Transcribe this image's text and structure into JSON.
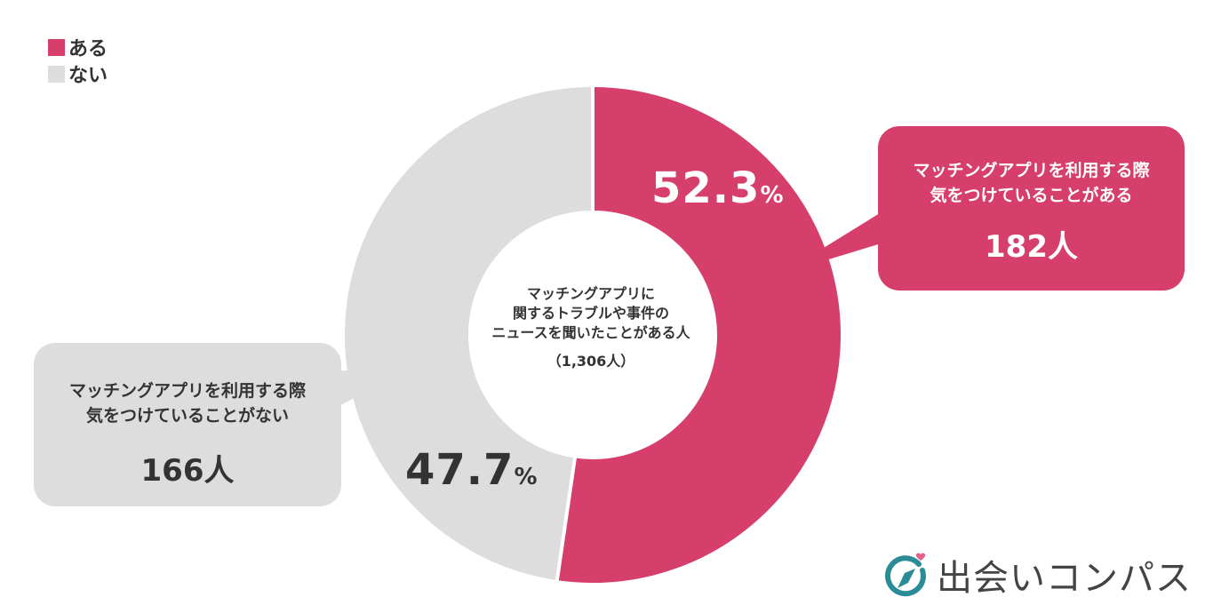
{
  "colors": {
    "yes": "#d63e6c",
    "no": "#dddddd",
    "text": "#333333"
  },
  "legend": [
    {
      "label": "ある",
      "color": "#d63e6c"
    },
    {
      "label": "ない",
      "color": "#dddddd"
    }
  ],
  "chart_data": {
    "type": "pie",
    "subtype": "donut",
    "center_label": [
      "マッチングアプリに",
      "関するトラブルや事件の",
      "ニュースを聞いたことがある人"
    ],
    "center_n": "（1,306人）",
    "series": [
      {
        "name": "ある",
        "value": 52.3,
        "percent_label": "52.3",
        "unit": "%",
        "color": "#d63e6c",
        "callout": [
          "マッチングアプリを利用する際",
          "気をつけていることがある"
        ],
        "count": "182人"
      },
      {
        "name": "ない",
        "value": 47.7,
        "percent_label": "47.7",
        "unit": "%",
        "color": "#dddddd",
        "callout": [
          "マッチングアプリを利用する際",
          "気をつけていることがない"
        ],
        "count": "166人"
      }
    ],
    "legend_position": "top-left"
  },
  "brand": {
    "name": "出会いコンパス"
  }
}
